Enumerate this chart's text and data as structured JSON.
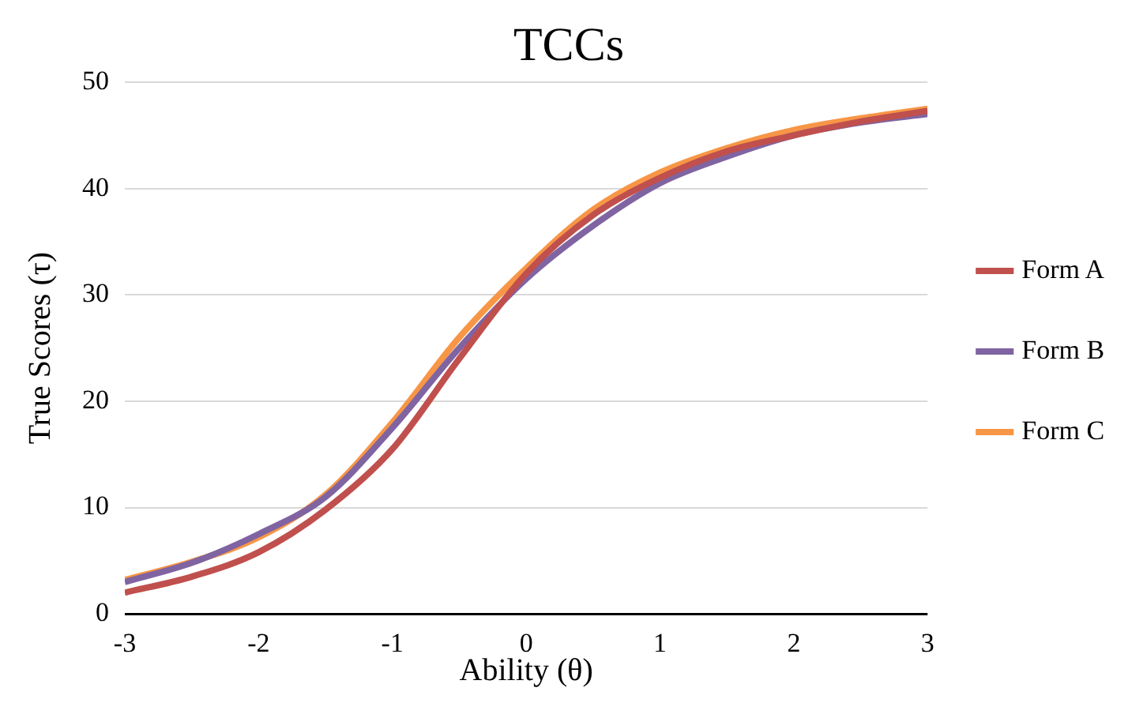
{
  "chart_data": {
    "type": "line",
    "title": "TCCs",
    "xlabel": "Ability (θ)",
    "ylabel": "True Scores (τ)",
    "x": [
      -3,
      -2.5,
      -2,
      -1.5,
      -1,
      -0.5,
      0,
      0.5,
      1,
      1.5,
      2,
      2.5,
      3
    ],
    "series": [
      {
        "name": "Form A",
        "color": "#c0504d",
        "values": [
          2,
          3.5,
          5.8,
          9.8,
          15.5,
          24,
          32,
          37.5,
          41,
          43.5,
          45,
          46.3,
          47.3
        ]
      },
      {
        "name": "Form B",
        "color": "#8064a2",
        "values": [
          3,
          4.8,
          7.5,
          11,
          17.5,
          25,
          31.5,
          36.5,
          40.5,
          43,
          45,
          46.2,
          47
        ]
      },
      {
        "name": "Form C",
        "color": "#f79646",
        "values": [
          3.2,
          4.9,
          7.2,
          11.2,
          18,
          26,
          32.5,
          38,
          41.5,
          43.8,
          45.5,
          46.6,
          47.5
        ]
      }
    ],
    "xlim": [
      -3,
      3
    ],
    "xticks": [
      -3,
      -2,
      -1,
      0,
      1,
      2,
      3
    ],
    "ylim": [
      0,
      50
    ],
    "yticks": [
      0,
      10,
      20,
      30,
      40,
      50
    ],
    "grid": "y",
    "legend": "right",
    "marker": "none",
    "line_style": "solid"
  }
}
